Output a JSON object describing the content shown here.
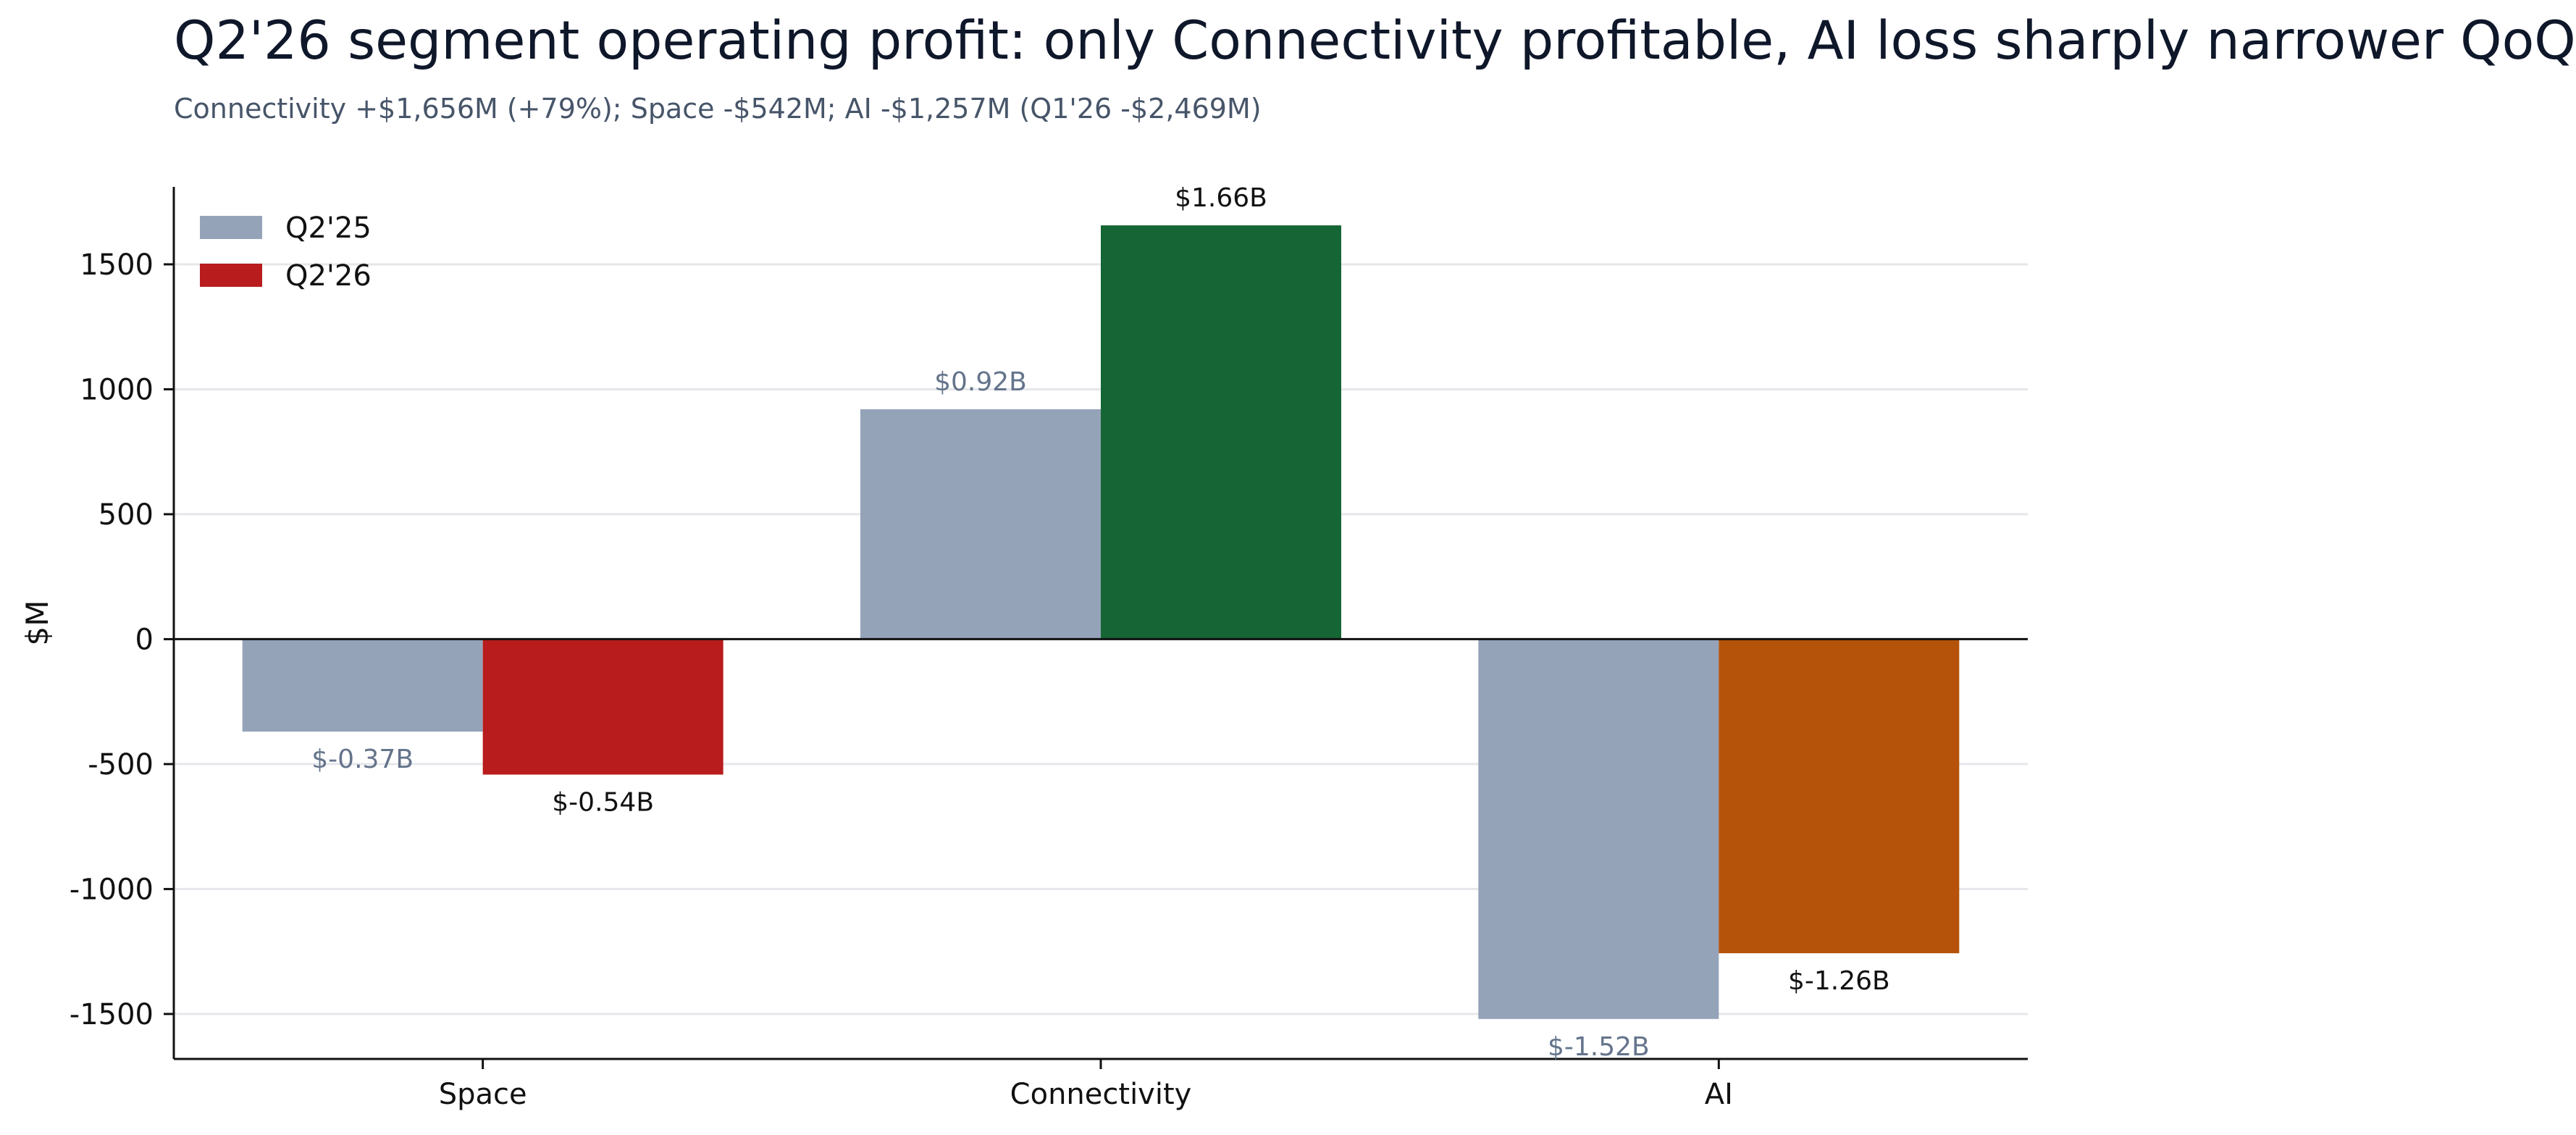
{
  "chart_data": {
    "type": "bar",
    "title": "Q2'26 segment operating profit: only Connectivity profitable, AI loss sharply narrower QoQ",
    "subtitle": "Connectivity +$1,656M (+79%); Space -$542M; AI -$1,257M (Q1'26 -$2,469M)",
    "ylabel": "$M",
    "xlabel": "",
    "categories": [
      "Space",
      "Connectivity",
      "AI"
    ],
    "ylim": [
      -1680,
      1810
    ],
    "yticks": [
      1500,
      1000,
      500,
      0,
      -500,
      -1000,
      -1500
    ],
    "ytick_labels": [
      "1500",
      "1000",
      "500",
      "0",
      "-500",
      "-1000",
      "-1500"
    ],
    "grid": "horizontal",
    "legend_position": "top-left",
    "legend": [
      {
        "label": "Q2'25",
        "color": "#94a3b8"
      },
      {
        "label": "Q2'26",
        "color": "#b91c1c"
      }
    ],
    "series": [
      {
        "name": "Q2'25",
        "values": [
          -370,
          920,
          -1520
        ],
        "colors": [
          "#94a3b8",
          "#94a3b8",
          "#94a3b8"
        ],
        "labels": [
          "$-0.37B",
          "$0.92B",
          "$-1.52B"
        ],
        "label_color": "#64748b"
      },
      {
        "name": "Q2'26",
        "values": [
          -542,
          1656,
          -1257
        ],
        "colors": [
          "#b91c1c",
          "#166534",
          "#b45309"
        ],
        "labels": [
          "$-0.54B",
          "$1.66B",
          "$-1.26B"
        ],
        "label_color": "#111111"
      }
    ]
  }
}
